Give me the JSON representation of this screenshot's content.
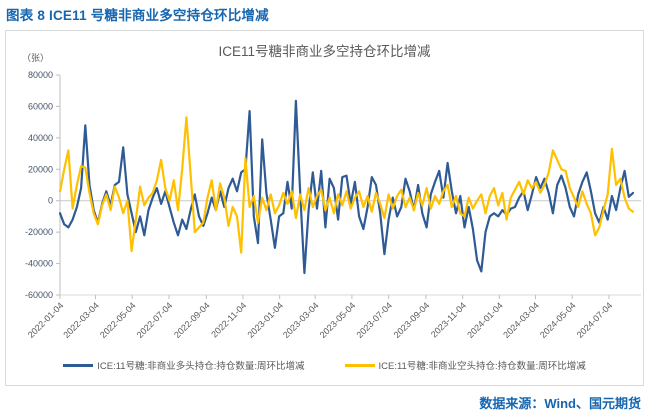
{
  "page": {
    "header": "图表 8 ICE11 号糖非商业多空持仓环比增减",
    "source_note": "数据来源：Wind、国元期货",
    "header_color": "#1766B0"
  },
  "chart_data": {
    "type": "line",
    "title": "ICE11号糖非商业多空持仓环比增减",
    "unit_label": "（张）",
    "xlabel": "",
    "ylabel": "",
    "ylim": [
      -60000,
      80000
    ],
    "y_ticks": [
      80000,
      60000,
      40000,
      20000,
      0,
      -20000,
      -40000,
      -60000
    ],
    "x_start": "2022-01-04",
    "x_end": "2024-08-13",
    "frequency": "weekly",
    "n_points": 137,
    "x_tick_labels": [
      "2022-01-04",
      "2022-03-04",
      "2022-05-04",
      "2022-07-04",
      "2022-09-04",
      "2022-11-04",
      "2023-01-04",
      "2023-03-04",
      "2023-05-04",
      "2023-07-04",
      "2023-09-04",
      "2023-11-04",
      "2024-01-04",
      "2024-03-04",
      "2024-05-04",
      "2024-07-04"
    ],
    "grid": "zero-line-only",
    "legend_position": "bottom",
    "axis_text_color": "#595959",
    "y_axis_text_color": "#44546A",
    "axis_line_color": "#BFBFBF",
    "border_color": "#D9D9D9",
    "series": [
      {
        "name": "ICE:11号糖:非商业多头持仓:持仓数量:周环比增减",
        "color": "#2F5B95",
        "values": [
          -8000,
          -15000,
          -17000,
          -12000,
          -4000,
          8000,
          48000,
          10000,
          -6000,
          -14000,
          -2000,
          6000,
          -3000,
          10000,
          12000,
          34000,
          4000,
          -8000,
          -20000,
          -10000,
          -22000,
          -6000,
          2000,
          8000,
          -2000,
          6000,
          -4000,
          -14000,
          -22000,
          -12000,
          -18000,
          -6000,
          4000,
          -10000,
          -16000,
          -8000,
          2000,
          -6000,
          6000,
          -4000,
          8000,
          14000,
          6000,
          18000,
          20000,
          57000,
          -10000,
          -27000,
          39000,
          5000,
          -12000,
          -30000,
          -10000,
          -8000,
          12000,
          -5000,
          63500,
          5000,
          -46000,
          -6000,
          18000,
          -5000,
          19000,
          -17000,
          14000,
          8000,
          -12000,
          15000,
          16000,
          -2000,
          12000,
          -10000,
          -18000,
          -4000,
          15000,
          10000,
          -8000,
          -34000,
          -12000,
          2000,
          -10000,
          -4000,
          14000,
          6000,
          -6000,
          10000,
          -8000,
          -17000,
          4000,
          12000,
          19000,
          2000,
          24000,
          6000,
          -8000,
          3000,
          -17000,
          -4000,
          -18000,
          -38000,
          -45000,
          -20000,
          -10000,
          -8000,
          -10000,
          -6000,
          -9000,
          -5000,
          -4000,
          2000,
          6000,
          -6000,
          4000,
          15000,
          8000,
          14000,
          5000,
          -8000,
          10000,
          16000,
          8000,
          -4000,
          -10000,
          4000,
          12000,
          18000,
          6000,
          -8000,
          -14000,
          -4000,
          -12000,
          3000,
          -6000,
          8000,
          19000,
          2500,
          5000
        ]
      },
      {
        "name": "ICE:11号糖:非商业空头持仓:持仓数量:周环比增减",
        "color": "#FFC000",
        "values": [
          6000,
          20000,
          32000,
          -5000,
          10000,
          22000,
          21000,
          5000,
          -8000,
          -15000,
          -3000,
          4000,
          -6000,
          9000,
          2000,
          -8000,
          0,
          -32000,
          -12000,
          9000,
          -3000,
          2000,
          5000,
          13000,
          26000,
          8000,
          0,
          13000,
          -6000,
          20000,
          53000,
          17000,
          -20000,
          -17000,
          -14000,
          2000,
          13000,
          -6000,
          11000,
          2000,
          -16000,
          -4000,
          -10000,
          -33000,
          27000,
          -4000,
          3000,
          -14000,
          2000,
          -6000,
          4000,
          -8000,
          -3000,
          5000,
          -2000,
          6000,
          -11000,
          4000,
          -6000,
          8000,
          -4000,
          3000,
          7000,
          -6000,
          2000,
          -8000,
          4000,
          -3000,
          6000,
          -5000,
          2000,
          6000,
          -4000,
          3000,
          -7000,
          5000,
          -2000,
          -11000,
          4000,
          -5000,
          3000,
          7000,
          -4000,
          2000,
          -6000,
          5000,
          -3000,
          8000,
          -5000,
          3000,
          -2000,
          6000,
          10000,
          -4000,
          3000,
          -8000,
          -10000,
          2000,
          -5000,
          0,
          4000,
          -8000,
          3000,
          8000,
          -3000,
          5000,
          -12000,
          2000,
          7000,
          12000,
          4000,
          13000,
          8000,
          12000,
          5000,
          10000,
          18000,
          32000,
          26000,
          20000,
          19000,
          8000,
          2000,
          -4000,
          6000,
          -2000,
          -8000,
          -22000,
          -17000,
          -6000,
          4000,
          33000,
          10000,
          14000,
          2000,
          -5000,
          -7000
        ]
      }
    ]
  }
}
